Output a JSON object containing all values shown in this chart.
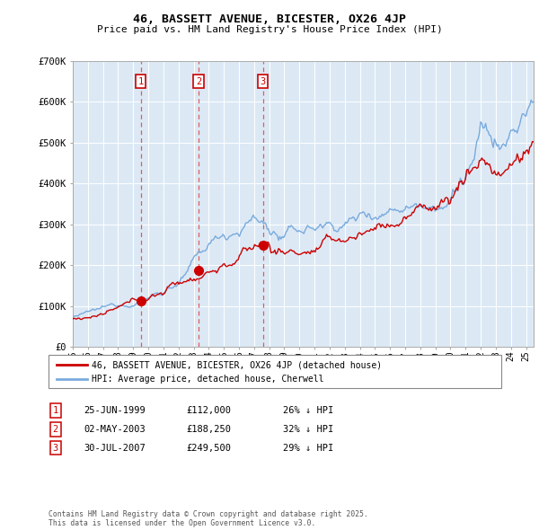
{
  "title": "46, BASSETT AVENUE, BICESTER, OX26 4JP",
  "subtitle": "Price paid vs. HM Land Registry's House Price Index (HPI)",
  "background_color": "#ffffff",
  "plot_background": "#dce9f5",
  "grid_color": "#ffffff",
  "red_line_color": "#cc0000",
  "blue_line_color": "#7aaadd",
  "vline_color": "#dd4444",
  "marker_box_color": "#cc0000",
  "ylim": [
    0,
    700000
  ],
  "yticks": [
    0,
    100000,
    200000,
    300000,
    400000,
    500000,
    600000,
    700000
  ],
  "ytick_labels": [
    "£0",
    "£100K",
    "£200K",
    "£300K",
    "£400K",
    "£500K",
    "£600K",
    "£700K"
  ],
  "sale_prices": [
    112000,
    188250,
    249500
  ],
  "sale_labels": [
    "1",
    "2",
    "3"
  ],
  "legend_red": "46, BASSETT AVENUE, BICESTER, OX26 4JP (detached house)",
  "legend_blue": "HPI: Average price, detached house, Cherwell",
  "footer": "Contains HM Land Registry data © Crown copyright and database right 2025.\nThis data is licensed under the Open Government Licence v3.0.",
  "table_rows": [
    [
      "1",
      "25-JUN-1999",
      "£112,000",
      "26% ↓ HPI"
    ],
    [
      "2",
      "02-MAY-2003",
      "£188,250",
      "32% ↓ HPI"
    ],
    [
      "3",
      "30-JUL-2007",
      "£249,500",
      "29% ↓ HPI"
    ]
  ]
}
